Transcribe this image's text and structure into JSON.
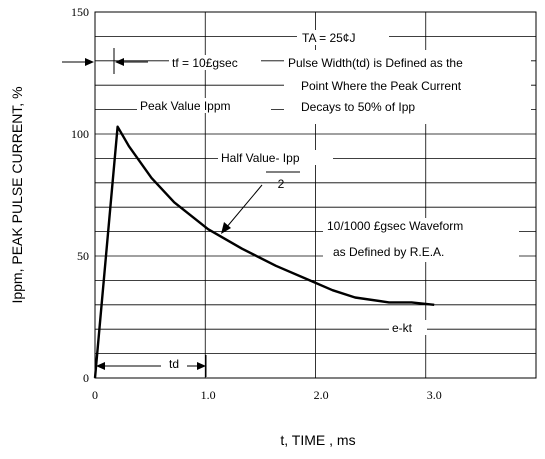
{
  "chart_data": {
    "type": "line",
    "title": "",
    "xlabel": "t, TIME , ms",
    "ylabel": "Ippm, PEAK PULSE CURRENT, %",
    "xlim": [
      0,
      3.9
    ],
    "ylim": [
      0,
      150
    ],
    "x_ticks": [
      0,
      1.0,
      2.0,
      3.0
    ],
    "x_tick_labels": [
      "0",
      "1.0",
      "2.0",
      "3.0"
    ],
    "y_ticks": [
      0,
      50,
      100,
      150
    ],
    "y_tick_labels": [
      "0",
      "50",
      "100",
      "150"
    ],
    "grid": true,
    "legend": "none",
    "series": [
      {
        "x": [
          0,
          0.2,
          0.3,
          0.5,
          0.7,
          1.0,
          1.3,
          1.6,
          1.9,
          2.1,
          2.3,
          2.6,
          2.8,
          3.0
        ],
        "y": [
          0,
          103,
          95,
          82,
          72,
          61,
          53,
          46,
          40,
          36,
          33,
          31,
          31,
          30
        ]
      }
    ],
    "annotations": {
      "ta": "TA = 25¢J",
      "tf": "tf = 10£gsec",
      "pulse_width_1": "Pulse Width(td) is Defined as the",
      "pulse_width_2": "Point Where the Peak Current",
      "pulse_width_3": "Decays to 50% of Ipp",
      "peak_value": "Peak Value Ippm",
      "half_value": "Half Value- Ipp",
      "half_value_denominator": "2",
      "waveform_1": "10/1000 £gsec Waveform",
      "waveform_2": "as Defined by R.E.A.",
      "ekt": "e-kt",
      "td": "td"
    }
  }
}
